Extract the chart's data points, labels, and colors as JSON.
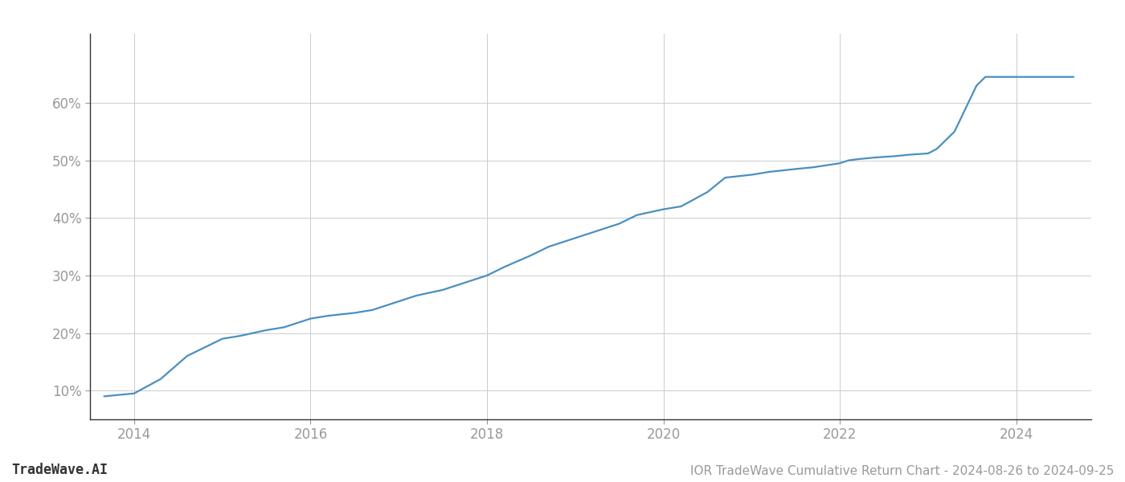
{
  "title": "IOR TradeWave Cumulative Return Chart - 2024-08-26 to 2024-09-25",
  "watermark": "TradeWave.AI",
  "line_color": "#4a8fc0",
  "background_color": "#ffffff",
  "grid_color": "#cccccc",
  "x_values": [
    2013.66,
    2014.0,
    2014.3,
    2014.6,
    2015.0,
    2015.2,
    2015.5,
    2015.7,
    2016.0,
    2016.2,
    2016.5,
    2016.7,
    2017.0,
    2017.2,
    2017.5,
    2017.7,
    2018.0,
    2018.2,
    2018.5,
    2018.7,
    2019.0,
    2019.2,
    2019.5,
    2019.7,
    2020.0,
    2020.2,
    2020.5,
    2020.7,
    2021.0,
    2021.2,
    2021.5,
    2021.7,
    2022.0,
    2022.1,
    2022.2,
    2022.4,
    2022.6,
    2022.8,
    2023.0,
    2023.1,
    2023.3,
    2023.55,
    2023.65,
    2023.7,
    2023.9,
    2024.0,
    2024.3,
    2024.65
  ],
  "y_values": [
    9.0,
    9.5,
    12.0,
    16.0,
    19.0,
    19.5,
    20.5,
    21.0,
    22.5,
    23.0,
    23.5,
    24.0,
    25.5,
    26.5,
    27.5,
    28.5,
    30.0,
    31.5,
    33.5,
    35.0,
    36.5,
    37.5,
    39.0,
    40.5,
    41.5,
    42.0,
    44.5,
    47.0,
    47.5,
    48.0,
    48.5,
    48.8,
    49.5,
    50.0,
    50.2,
    50.5,
    50.7,
    51.0,
    51.2,
    52.0,
    55.0,
    63.0,
    64.5,
    64.5,
    64.5,
    64.5,
    64.5,
    64.5
  ],
  "xlim": [
    2013.5,
    2024.85
  ],
  "ylim": [
    5,
    72
  ],
  "xticks": [
    2014,
    2016,
    2018,
    2020,
    2022,
    2024
  ],
  "yticks": [
    10,
    20,
    30,
    40,
    50,
    60
  ],
  "ytick_labels": [
    "10%",
    "20%",
    "30%",
    "40%",
    "50%",
    "60%"
  ],
  "line_width": 1.6,
  "tick_label_color": "#999999",
  "tick_label_fontsize": 12,
  "watermark_fontsize": 12,
  "footer_fontsize": 11,
  "left_spine_color": "#333333",
  "bottom_spine_color": "#333333"
}
